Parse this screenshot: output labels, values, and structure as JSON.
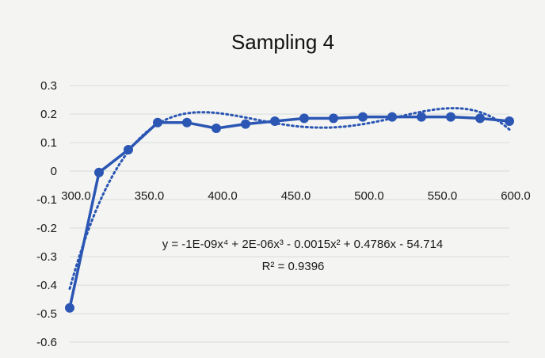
{
  "colors": {
    "background": "#f4f5f3",
    "gridline": "#d9dbd8",
    "series": "#2b56b3",
    "trendline": "#2b56b3"
  },
  "chart_data": {
    "type": "line",
    "title": "Sampling 4",
    "xlabel": "",
    "ylabel": "",
    "xlim": [
      300,
      600
    ],
    "ylim": [
      -0.6,
      0.3
    ],
    "grid": true,
    "legend": "none",
    "x_ticks": [
      "300.0",
      "350.0",
      "400.0",
      "450.0",
      "500.0",
      "550.0",
      "600.0"
    ],
    "y_ticks": [
      "0.3",
      "0.2",
      "0.1",
      "0",
      "-0.1",
      "-0.2",
      "-0.3",
      "-0.4",
      "-0.5",
      "-0.6"
    ],
    "series": [
      {
        "x": [
          300,
          320,
          340,
          360,
          380,
          400,
          420,
          440,
          460,
          480,
          500,
          520,
          540,
          560,
          580,
          600
        ],
        "y": [
          -0.48,
          -0.005,
          0.075,
          0.17,
          0.17,
          0.15,
          0.165,
          0.175,
          0.185,
          0.185,
          0.19,
          0.19,
          0.19,
          0.19,
          0.185,
          0.175
        ]
      }
    ],
    "trendline": {
      "type": "polynomial",
      "order": 4,
      "style": "dotted",
      "equation": "y = -1E-09x⁴ + 2E-06x³ - 0.0015x² + 0.4786x - 54.714",
      "r_squared": "R² = 0.9396"
    }
  }
}
